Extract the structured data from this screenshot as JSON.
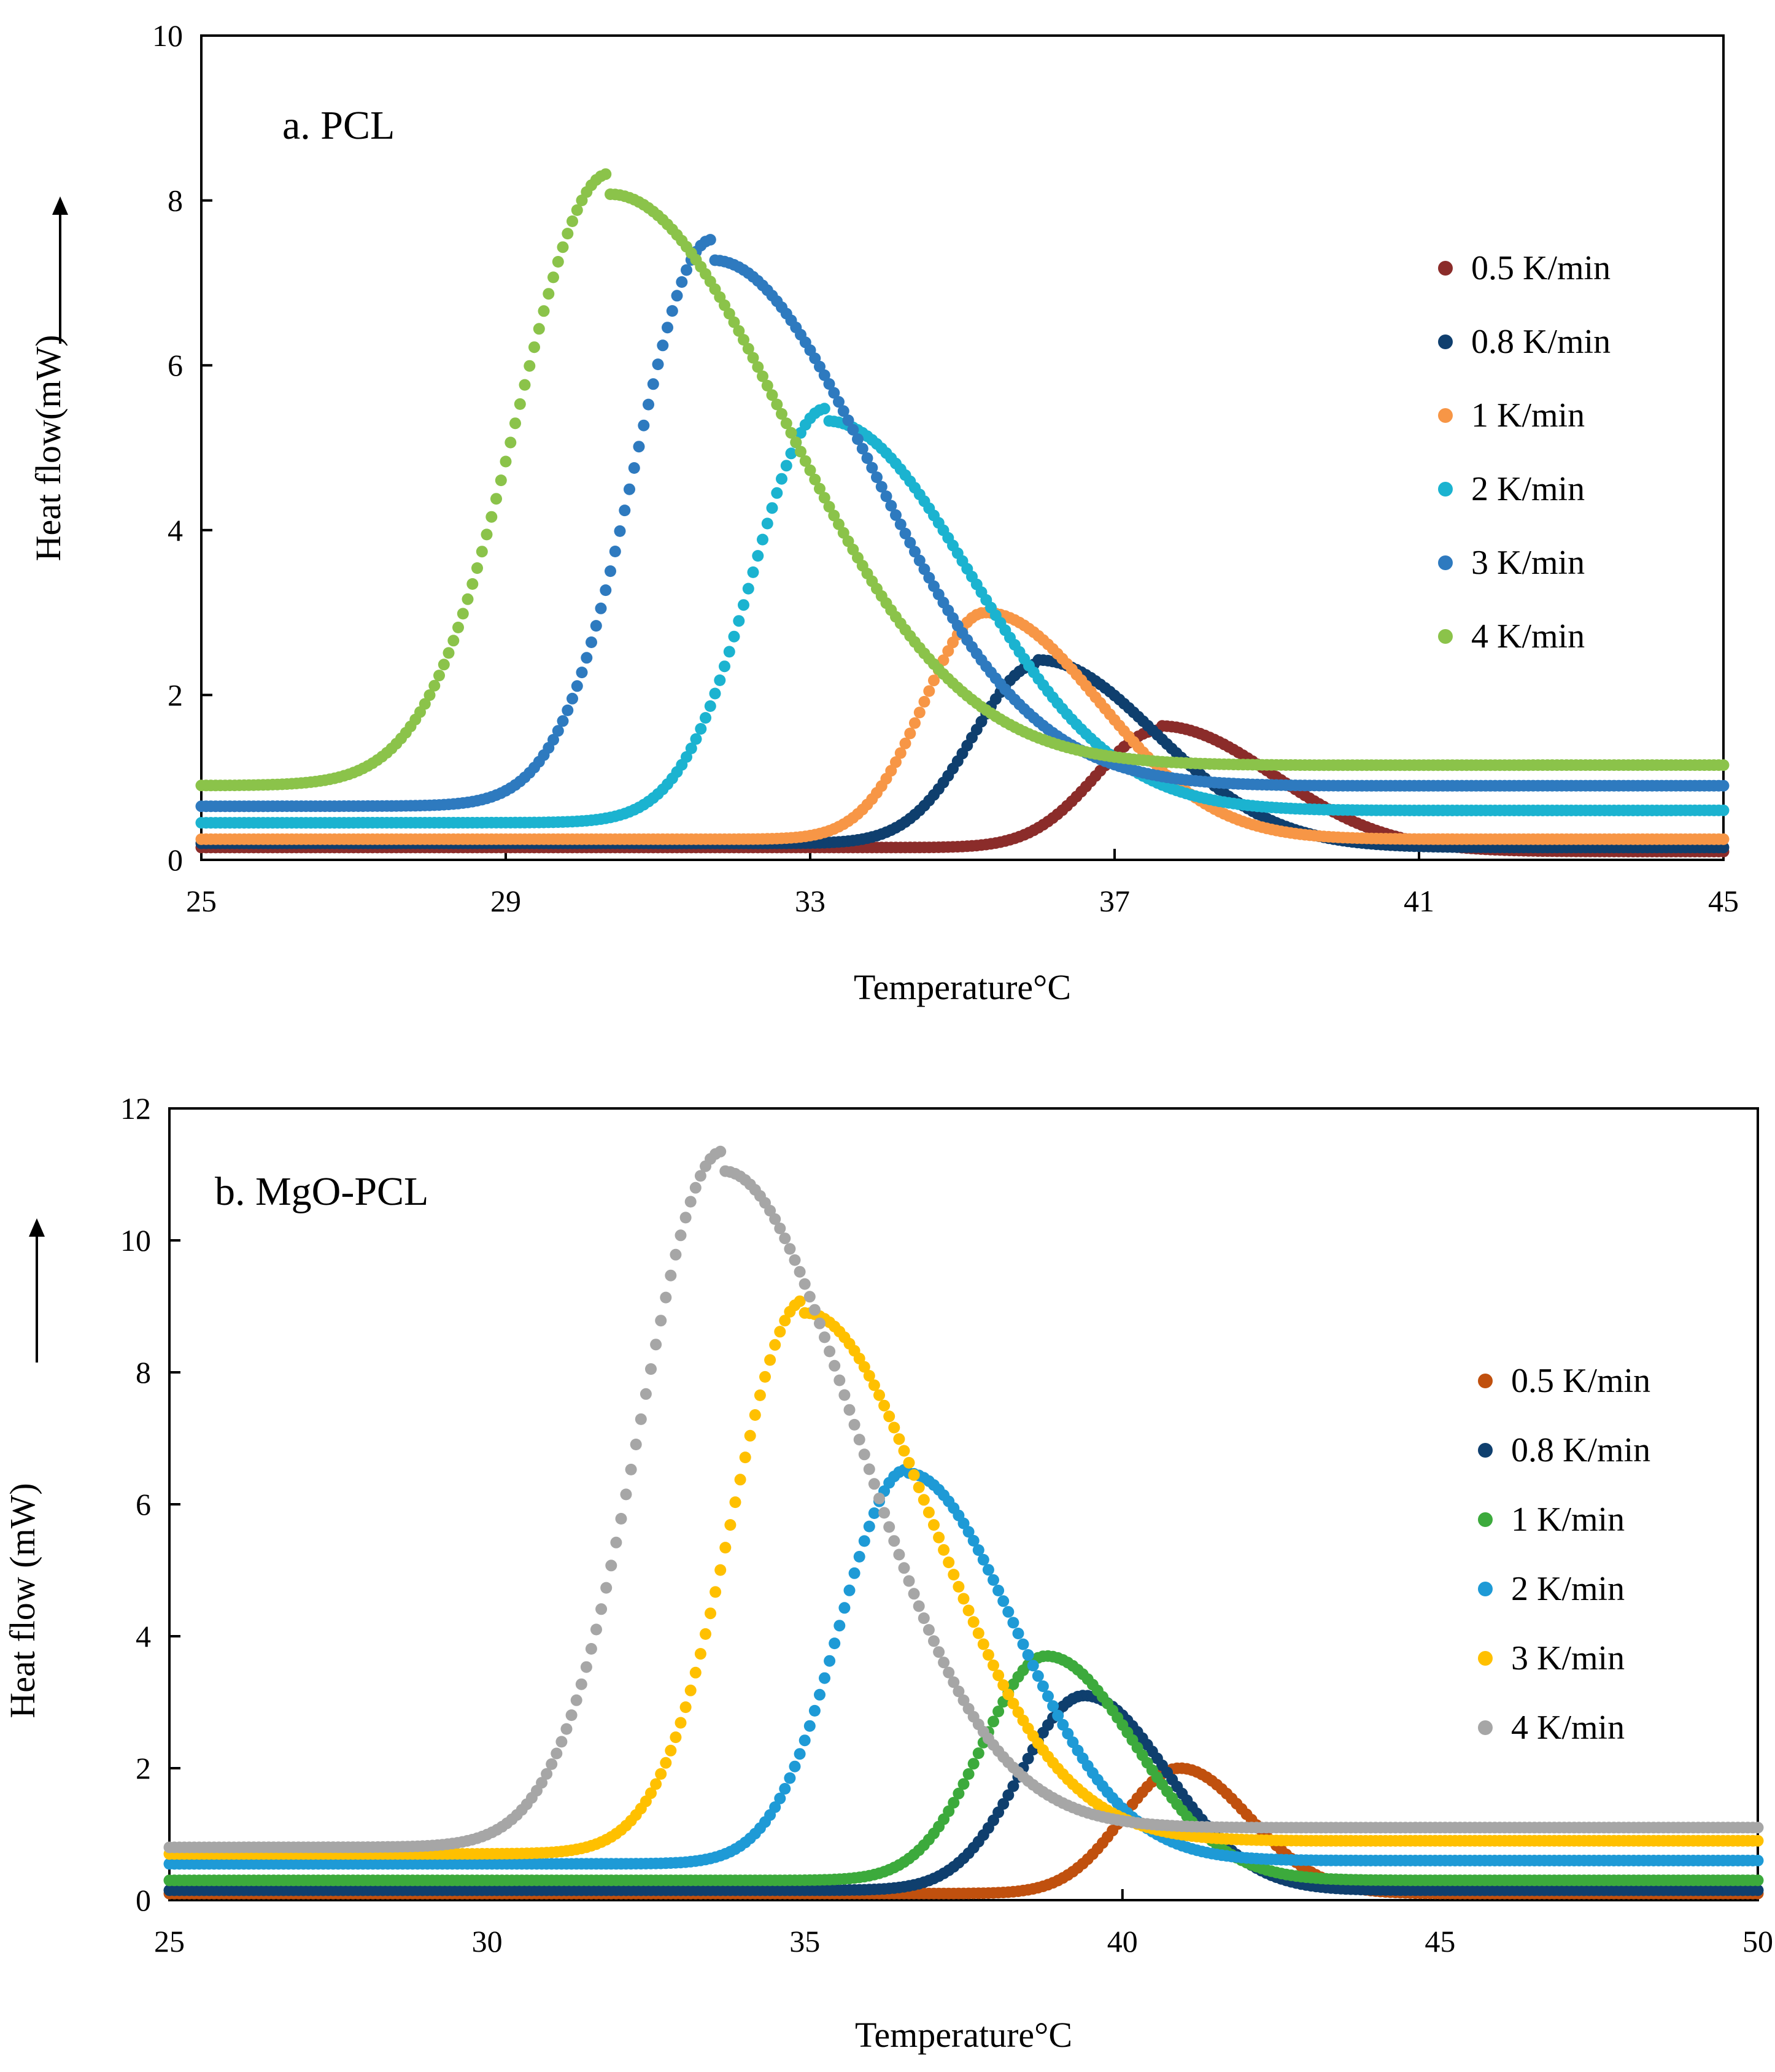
{
  "chart_data": [
    {
      "id": "a",
      "type": "scatter",
      "panel_label": "a. PCL",
      "xlabel": "Temperature°C",
      "ylabel": "Heat flow(mW)",
      "xlim": [
        25,
        45
      ],
      "ylim": [
        0,
        10
      ],
      "xticks": [
        25,
        29,
        33,
        37,
        41,
        45
      ],
      "yticks": [
        0,
        2,
        4,
        6,
        8,
        10
      ],
      "grid": false,
      "legend_position": "right",
      "series": [
        {
          "name": "0.5 K/min",
          "color": "#8B2C2A",
          "peak_x": 37.6,
          "peak_y": 1.6,
          "start_y": 0.15,
          "end_y": 0.1,
          "rise": 0.85,
          "fall": 1.5
        },
        {
          "name": "0.8 K/min",
          "color": "#0F3F6E",
          "peak_x": 36.0,
          "peak_y": 2.4,
          "start_y": 0.2,
          "end_y": 0.15,
          "rise": 0.85,
          "fall": 1.55
        },
        {
          "name": "1 K/min",
          "color": "#F79646",
          "peak_x": 35.3,
          "peak_y": 3.0,
          "start_y": 0.25,
          "end_y": 0.25,
          "rise": 0.8,
          "fall": 1.5
        },
        {
          "name": "2 K/min",
          "color": "#1BB3D0",
          "peak_x": 33.2,
          "peak_y": 5.4,
          "start_y": 0.45,
          "end_y": 0.6,
          "rise": 0.95,
          "fall": 1.9
        },
        {
          "name": "3 K/min",
          "color": "#2E7ABF",
          "peak_x": 31.7,
          "peak_y": 7.4,
          "start_y": 0.65,
          "end_y": 0.9,
          "rise": 1.0,
          "fall": 2.1
        },
        {
          "name": "4 K/min",
          "color": "#8BC34A",
          "peak_x": 30.35,
          "peak_y": 8.2,
          "start_y": 0.9,
          "end_y": 1.15,
          "rise": 1.2,
          "fall": 2.3
        }
      ]
    },
    {
      "id": "b",
      "type": "scatter",
      "panel_label": "b. MgO-PCL",
      "xlabel": "Temperature°C",
      "ylabel": "Heat flow (mW)",
      "xlim": [
        25,
        50
      ],
      "ylim": [
        0,
        12
      ],
      "xticks": [
        25,
        30,
        35,
        40,
        45,
        50
      ],
      "yticks": [
        0,
        2,
        4,
        6,
        8,
        10,
        12
      ],
      "grid": false,
      "legend_position": "right",
      "series": [
        {
          "name": "0.5 K/min",
          "color": "#C0500E",
          "peak_x": 40.9,
          "peak_y": 2.0,
          "start_y": 0.1,
          "end_y": 0.1,
          "rise": 0.9,
          "fall": 1.1
        },
        {
          "name": "0.8 K/min",
          "color": "#0F3F6E",
          "peak_x": 39.4,
          "peak_y": 3.1,
          "start_y": 0.15,
          "end_y": 0.15,
          "rise": 1.0,
          "fall": 1.3
        },
        {
          "name": "1 K/min",
          "color": "#3CAA3C",
          "peak_x": 38.8,
          "peak_y": 3.7,
          "start_y": 0.3,
          "end_y": 0.3,
          "rise": 1.0,
          "fall": 1.4
        },
        {
          "name": "2 K/min",
          "color": "#1E9AD6",
          "peak_x": 36.6,
          "peak_y": 6.5,
          "start_y": 0.55,
          "end_y": 0.6,
          "rise": 1.05,
          "fall": 1.7
        },
        {
          "name": "3 K/min",
          "color": "#FFC000",
          "peak_x": 35.0,
          "peak_y": 9.0,
          "start_y": 0.7,
          "end_y": 0.9,
          "rise": 1.15,
          "fall": 2.0
        },
        {
          "name": "4 K/min",
          "color": "#A6A6A6",
          "peak_x": 33.7,
          "peak_y": 11.2,
          "start_y": 0.8,
          "end_y": 1.1,
          "rise": 1.3,
          "fall": 2.1
        }
      ]
    }
  ]
}
